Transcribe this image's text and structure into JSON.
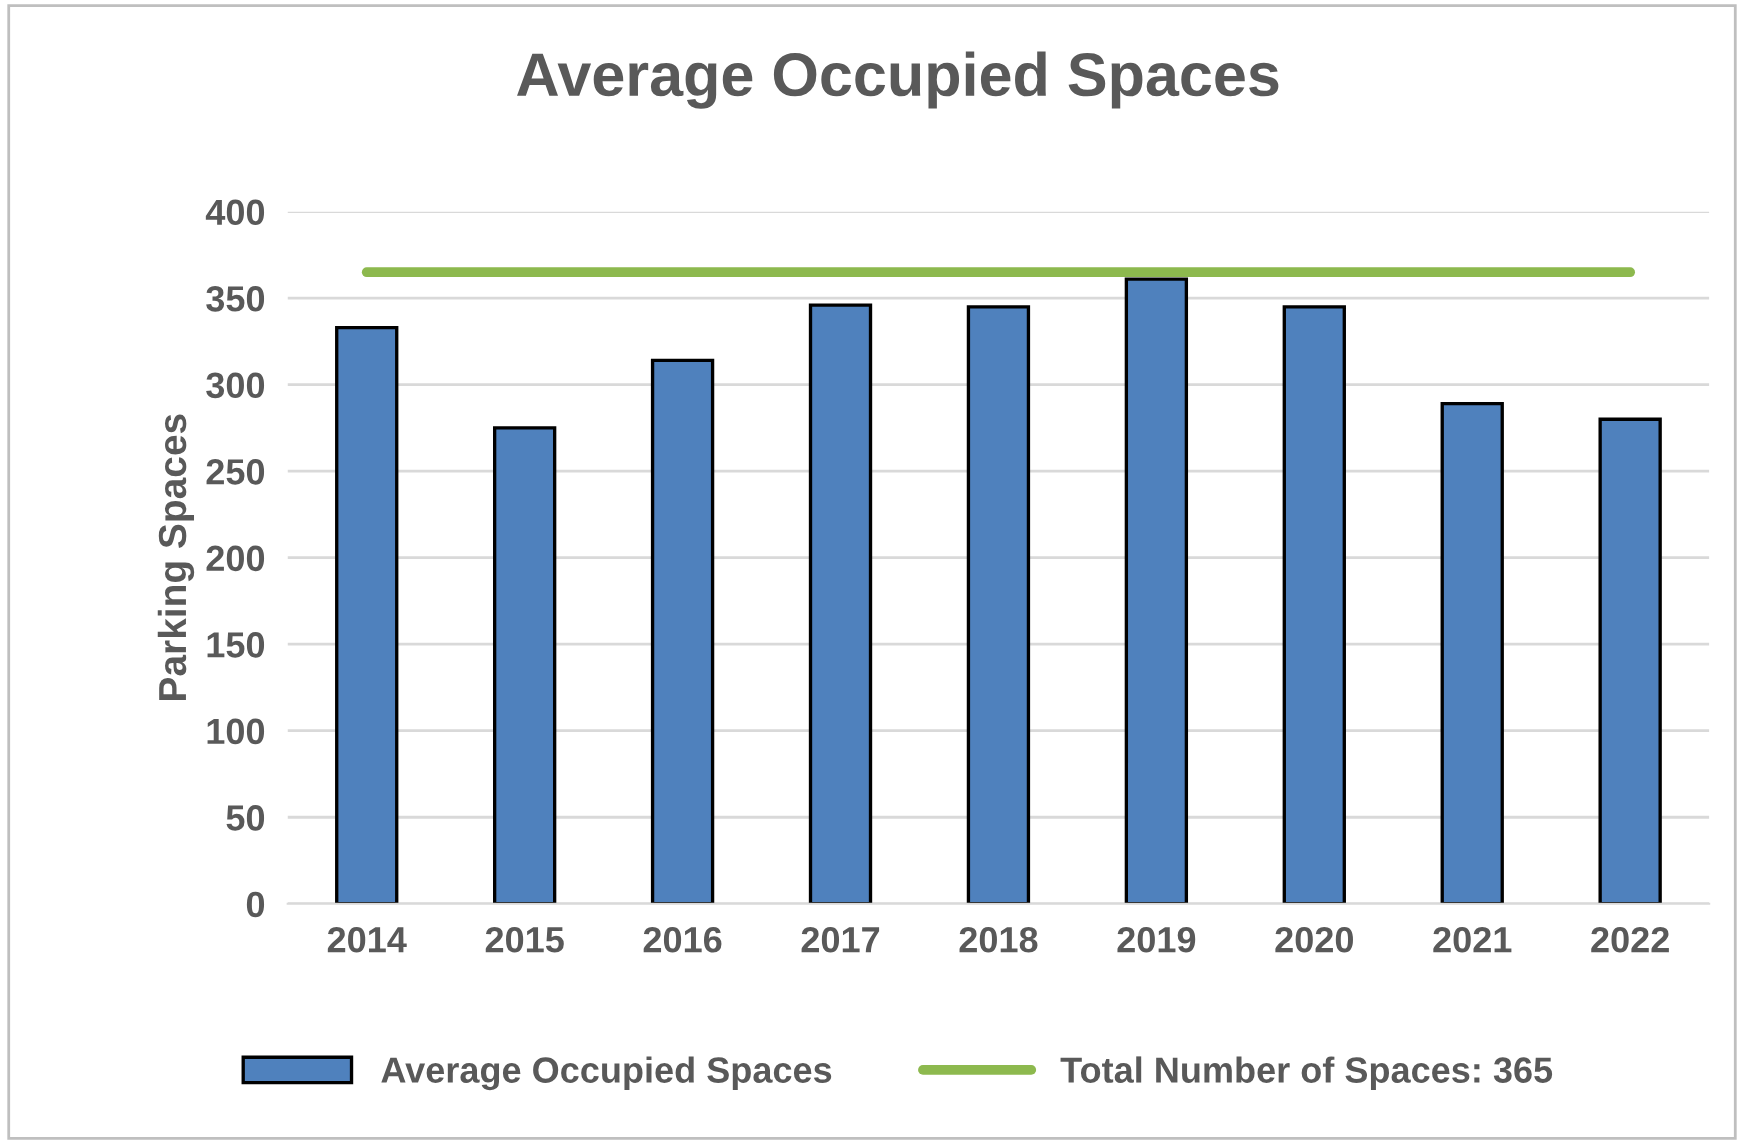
{
  "chart_data": {
    "type": "bar",
    "title": "Average Occupied Spaces",
    "ylabel": "Parking Spaces",
    "categories": [
      "2014",
      "2015",
      "2016",
      "2017",
      "2018",
      "2019",
      "2020",
      "2021",
      "2022"
    ],
    "series": [
      {
        "name": "Average Occupied Spaces",
        "color": "#4f81bd",
        "values": [
          333,
          275,
          314,
          346,
          345,
          361,
          345,
          289,
          280
        ]
      },
      {
        "name": "Total Number of Spaces: 365",
        "type": "line",
        "color": "#8db94e",
        "values": [
          365,
          365,
          365,
          365,
          365,
          365,
          365,
          365,
          365
        ]
      }
    ],
    "ylim": [
      0,
      400
    ],
    "yticks": [
      0,
      50,
      100,
      150,
      200,
      250,
      300,
      350,
      400
    ],
    "grid": "y",
    "legend": "bottom"
  }
}
